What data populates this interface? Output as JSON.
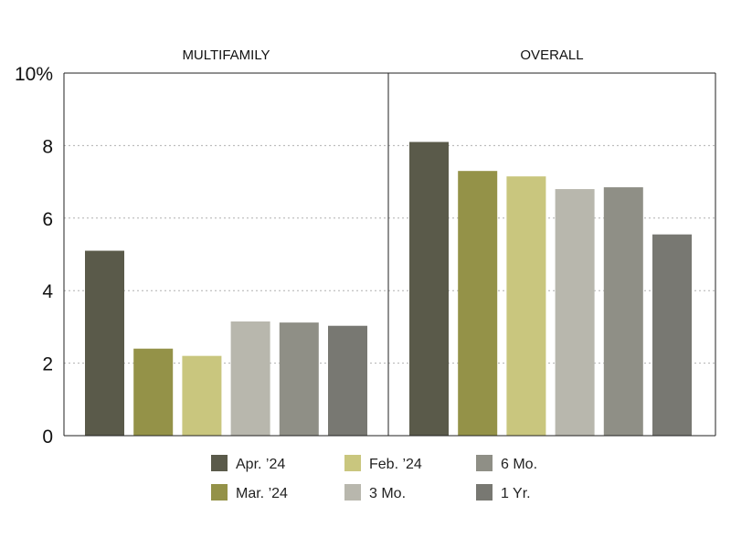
{
  "chart_data": {
    "type": "bar",
    "y_tick_labels": [
      "0",
      "2",
      "4",
      "6",
      "8",
      "10%"
    ],
    "ylim": [
      0,
      10
    ],
    "grid": "horizontal dotted",
    "legend_position": "bottom",
    "series": [
      {
        "name": "Apr. ’24",
        "color": "#5a5a4a"
      },
      {
        "name": "Mar. ’24",
        "color": "#949248"
      },
      {
        "name": "Feb. ’24",
        "color": "#c9c67e"
      },
      {
        "name": "3 Mo.",
        "color": "#b8b7ad"
      },
      {
        "name": "6 Mo.",
        "color": "#8f8f86"
      },
      {
        "name": "1 Yr.",
        "color": "#787872"
      }
    ],
    "panels": [
      {
        "title": "MULTIFAMILY",
        "values": [
          5.1,
          2.4,
          2.2,
          3.15,
          3.12,
          3.03
        ]
      },
      {
        "title": "OVERALL",
        "values": [
          8.1,
          7.3,
          7.15,
          6.8,
          6.85,
          5.55
        ]
      }
    ]
  }
}
